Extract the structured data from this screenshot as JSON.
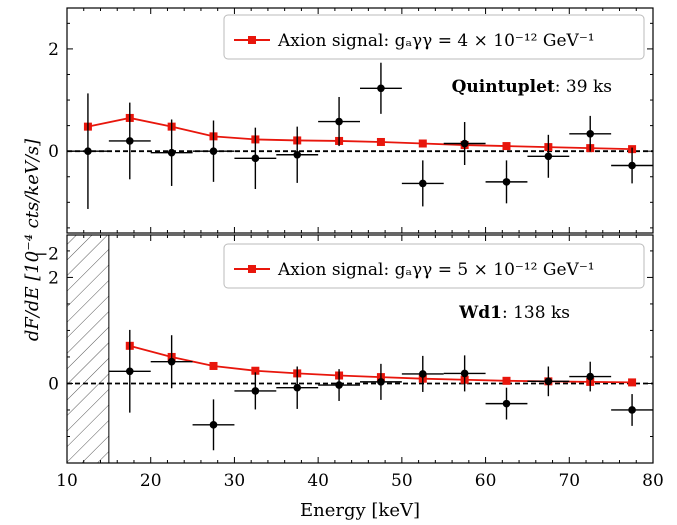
{
  "figure": {
    "xlabel": "Energy [keV]",
    "ylabel": "dF/dE [10⁻⁴ cts/keV/s]",
    "xticks": [
      "10",
      "20",
      "30",
      "40",
      "50",
      "60",
      "70",
      "80"
    ]
  },
  "chart_data": [
    {
      "type": "scatter",
      "panel": "top",
      "xlim": [
        10,
        80
      ],
      "ylim": [
        -1.6,
        2.8
      ],
      "yticks": [
        "−2",
        "0",
        "2"
      ],
      "ytick_values": [
        -2,
        0,
        2
      ],
      "legend": {
        "label": "Axion signal: gₐγγ = 4 × 10⁻¹² GeV⁻¹",
        "placement": "top-right"
      },
      "annotation": {
        "bold": "Quintuplet",
        "rest": ": 39 ks"
      },
      "data_series": {
        "name": "",
        "color": "#000000",
        "x": [
          12.5,
          17.5,
          22.5,
          27.5,
          32.5,
          37.5,
          42.5,
          47.5,
          52.5,
          57.5,
          62.5,
          67.5,
          72.5,
          77.5
        ],
        "xerr": 2.5,
        "y": [
          0.0,
          0.2,
          -0.03,
          0.0,
          -0.14,
          -0.07,
          0.58,
          1.23,
          -0.63,
          0.15,
          -0.6,
          -0.1,
          0.34,
          -0.28
        ],
        "yerr": [
          1.13,
          0.75,
          0.65,
          0.6,
          0.6,
          0.55,
          0.48,
          0.5,
          0.45,
          0.42,
          0.42,
          0.42,
          0.35,
          0.35
        ]
      },
      "model_series": {
        "name": "Axion signal",
        "color": "#e8160c",
        "x": [
          12.5,
          17.5,
          22.5,
          27.5,
          32.5,
          37.5,
          42.5,
          47.5,
          52.5,
          57.5,
          62.5,
          67.5,
          72.5,
          77.5
        ],
        "y": [
          0.48,
          0.65,
          0.48,
          0.29,
          0.23,
          0.21,
          0.2,
          0.18,
          0.15,
          0.12,
          0.1,
          0.08,
          0.06,
          0.04
        ]
      },
      "reference_line": {
        "y": 0,
        "style": "dashed"
      }
    },
    {
      "type": "scatter",
      "panel": "bottom",
      "xlim": [
        10,
        80
      ],
      "ylim": [
        -1.5,
        2.8
      ],
      "yticks": [
        "0",
        "2"
      ],
      "ytick_values": [
        0,
        2
      ],
      "hatched_region": [
        10,
        15
      ],
      "legend": {
        "label": "Axion signal: gₐγγ = 5 × 10⁻¹² GeV⁻¹",
        "placement": "top-right"
      },
      "annotation": {
        "bold": "Wd1",
        "rest": ": 138 ks"
      },
      "data_series": {
        "name": "",
        "color": "#000000",
        "x": [
          17.5,
          22.5,
          27.5,
          32.5,
          37.5,
          42.5,
          47.5,
          52.5,
          57.5,
          62.5,
          67.5,
          72.5,
          77.5
        ],
        "xerr": 2.5,
        "y": [
          0.23,
          0.41,
          -0.78,
          -0.14,
          -0.08,
          -0.03,
          0.03,
          0.18,
          0.19,
          -0.38,
          0.04,
          0.13,
          -0.5
        ],
        "yerr": [
          0.78,
          0.5,
          0.48,
          0.35,
          0.4,
          0.3,
          0.34,
          0.34,
          0.34,
          0.3,
          0.28,
          0.28,
          0.3
        ]
      },
      "model_series": {
        "name": "Axion signal",
        "color": "#e8160c",
        "x": [
          17.5,
          22.5,
          27.5,
          32.5,
          37.5,
          42.5,
          47.5,
          52.5,
          57.5,
          62.5,
          67.5,
          72.5,
          77.5
        ],
        "y": [
          0.71,
          0.5,
          0.33,
          0.24,
          0.19,
          0.15,
          0.12,
          0.09,
          0.07,
          0.05,
          0.04,
          0.03,
          0.02
        ]
      },
      "reference_line": {
        "y": 0,
        "style": "dashed"
      }
    }
  ]
}
